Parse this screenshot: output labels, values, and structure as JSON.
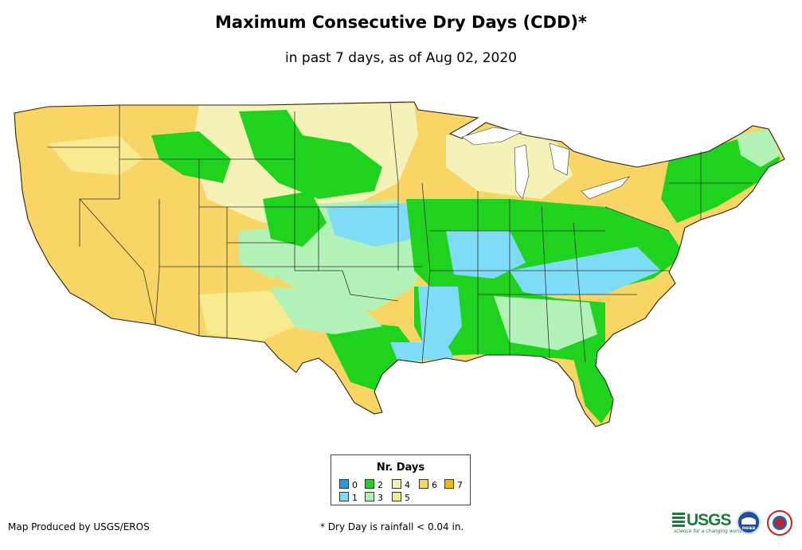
{
  "header": {
    "title": "Maximum Consecutive Dry Days (CDD)*",
    "subtitle": "in past 7 days, as of Aug 02, 2020"
  },
  "legend": {
    "title": "Nr. Days",
    "items": [
      {
        "label": "0",
        "color": "#1f9be8"
      },
      {
        "label": "1",
        "color": "#7fdcf7"
      },
      {
        "label": "2",
        "color": "#1ed21e"
      },
      {
        "label": "3",
        "color": "#b2f2b6"
      },
      {
        "label": "4",
        "color": "#f5f2b8"
      },
      {
        "label": "5",
        "color": "#f7ea8f"
      },
      {
        "label": "6",
        "color": "#f8d565"
      },
      {
        "label": "7",
        "color": "#f4b800"
      }
    ]
  },
  "footer": {
    "credit": "Map Produced by USGS/EROS",
    "note": "* Dry Day is rainfall < 0.04 in."
  },
  "logos": {
    "usgs": "USGS",
    "usgs_tagline": "science for a changing world",
    "noaa": "noaa",
    "nws_icon": "nws-seal-icon"
  }
}
